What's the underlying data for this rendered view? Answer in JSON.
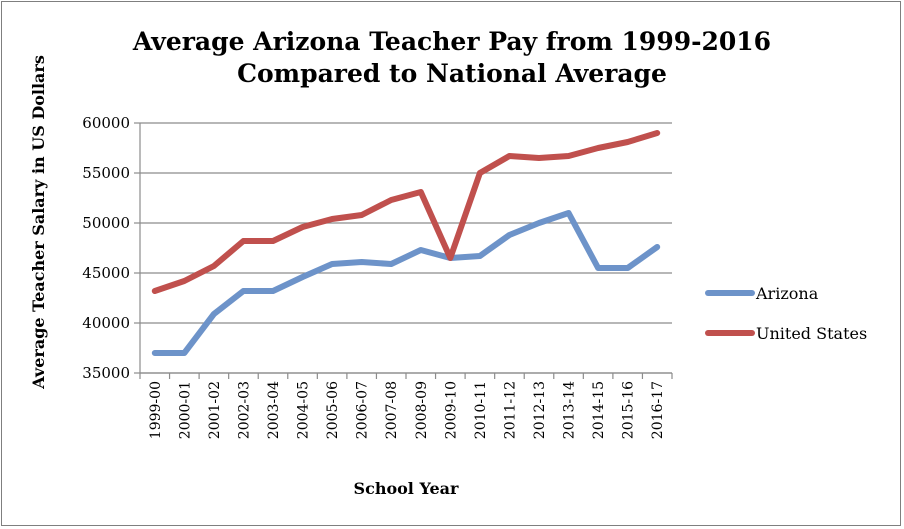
{
  "chart_data": {
    "type": "line",
    "title_line1": "Average Arizona Teacher Pay from 1999-2016",
    "title_line2": "Compared to National Average",
    "xlabel": "School Year",
    "ylabel": "Average Teacher Salary in US Dollars",
    "categories": [
      "1999-00",
      "2000-01",
      "2001-02",
      "2002-03",
      "2003-04",
      "2004-05",
      "2005-06",
      "2006-07",
      "2007-08",
      "2008-09",
      "2009-10",
      "2010-11",
      "2011-12",
      "2012-13",
      "2013-14",
      "2014-15",
      "2015-16",
      "2016-17"
    ],
    "ylim": [
      35000,
      60000
    ],
    "yticks": [
      35000,
      40000,
      45000,
      50000,
      55000,
      60000
    ],
    "grid": true,
    "legend_position": "right",
    "series": [
      {
        "name": "Arizona",
        "color": "#6d93c9",
        "values": [
          37000,
          37000,
          40900,
          43200,
          43200,
          44600,
          45900,
          46100,
          45900,
          47300,
          46500,
          46700,
          48800,
          50000,
          51000,
          45500,
          45500,
          47600
        ]
      },
      {
        "name": "United States",
        "color": "#c0504d",
        "values": [
          43200,
          44200,
          45700,
          48200,
          48200,
          49600,
          50400,
          50800,
          52300,
          53100,
          46500,
          55000,
          56700,
          56500,
          56700,
          57500,
          58100,
          59000
        ]
      }
    ]
  }
}
